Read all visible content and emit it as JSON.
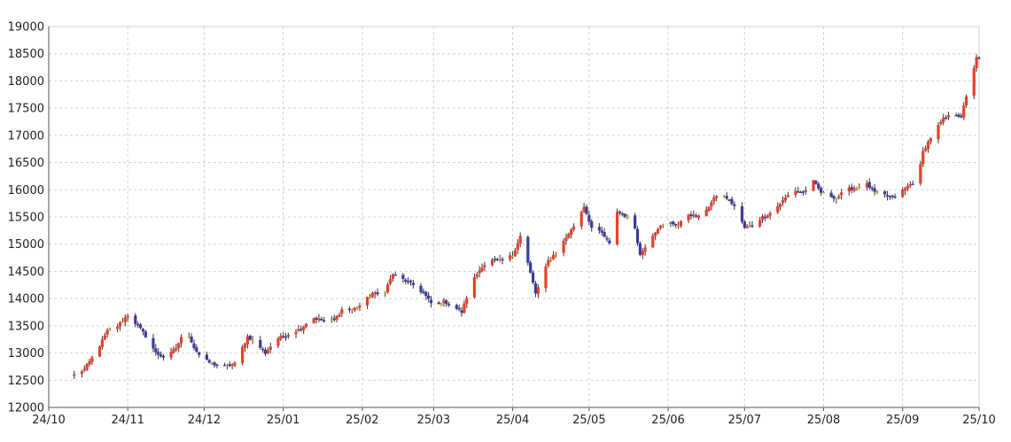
{
  "chart_data": {
    "type": "candlestick",
    "grid": true,
    "legend": "none",
    "ylim": [
      12000,
      19000
    ],
    "xlim": [
      "2024-10-01",
      "2025-10-01"
    ],
    "y_ticks": [
      12000,
      12500,
      13000,
      13500,
      14000,
      14500,
      15000,
      15500,
      16000,
      16500,
      17000,
      17500,
      18000,
      18500,
      19000
    ],
    "x_ticks": [
      {
        "label": "24/10",
        "date": "2024-10-01"
      },
      {
        "label": "24/11",
        "date": "2024-11-01"
      },
      {
        "label": "24/12",
        "date": "2024-12-01"
      },
      {
        "label": "25/01",
        "date": "2025-01-01"
      },
      {
        "label": "25/02",
        "date": "2025-02-01"
      },
      {
        "label": "25/03",
        "date": "2025-03-01"
      },
      {
        "label": "25/04",
        "date": "2025-04-01"
      },
      {
        "label": "25/05",
        "date": "2025-05-01"
      },
      {
        "label": "25/06",
        "date": "2025-06-01"
      },
      {
        "label": "25/07",
        "date": "2025-07-01"
      },
      {
        "label": "25/08",
        "date": "2025-08-01"
      },
      {
        "label": "25/09",
        "date": "2025-09-01"
      },
      {
        "label": "25/10",
        "date": "2025-10-01"
      }
    ],
    "colors": {
      "up": "#e8402a",
      "down": "#3a3aa0",
      "up_small": "#f5a623",
      "wick": "#333333"
    },
    "close_path": [
      [
        "2024-10-11",
        12600
      ],
      [
        "2024-10-15",
        12700
      ],
      [
        "2024-10-20",
        13050
      ],
      [
        "2024-10-24",
        13400
      ],
      [
        "2024-10-28",
        13500
      ],
      [
        "2024-11-01",
        13700
      ],
      [
        "2024-11-05",
        13500
      ],
      [
        "2024-11-09",
        13250
      ],
      [
        "2024-11-12",
        13000
      ],
      [
        "2024-11-16",
        12900
      ],
      [
        "2024-11-20",
        13100
      ],
      [
        "2024-11-24",
        13450
      ],
      [
        "2024-11-27",
        13100
      ],
      [
        "2024-11-30",
        12900
      ],
      [
        "2024-12-04",
        12800
      ],
      [
        "2024-12-09",
        12750
      ],
      [
        "2024-12-13",
        12800
      ],
      [
        "2024-12-18",
        13300
      ],
      [
        "2024-12-21",
        13200
      ],
      [
        "2024-12-25",
        13000
      ],
      [
        "2024-12-29",
        13250
      ],
      [
        "2025-01-03",
        13350
      ],
      [
        "2025-01-08",
        13450
      ],
      [
        "2025-01-12",
        13650
      ],
      [
        "2025-01-17",
        13600
      ],
      [
        "2025-01-21",
        13600
      ],
      [
        "2025-01-24",
        13800
      ],
      [
        "2025-01-28",
        13800
      ],
      [
        "2025-02-01",
        13900
      ],
      [
        "2025-02-05",
        14100
      ],
      [
        "2025-02-09",
        14050
      ],
      [
        "2025-02-13",
        14450
      ],
      [
        "2025-02-17",
        14350
      ],
      [
        "2025-02-21",
        14250
      ],
      [
        "2025-02-25",
        14100
      ],
      [
        "2025-03-01",
        13850
      ],
      [
        "2025-03-05",
        13950
      ],
      [
        "2025-03-09",
        13850
      ],
      [
        "2025-03-12",
        13750
      ],
      [
        "2025-03-16",
        14300
      ],
      [
        "2025-03-20",
        14600
      ],
      [
        "2025-03-24",
        14700
      ],
      [
        "2025-03-28",
        14700
      ],
      [
        "2025-04-01",
        14800
      ],
      [
        "2025-04-04",
        15150
      ],
      [
        "2025-04-07",
        14650
      ],
      [
        "2025-04-10",
        14100
      ],
      [
        "2025-04-12",
        14300
      ],
      [
        "2025-04-15",
        14700
      ],
      [
        "2025-04-19",
        14900
      ],
      [
        "2025-04-23",
        15200
      ],
      [
        "2025-04-26",
        15400
      ],
      [
        "2025-04-29",
        15700
      ],
      [
        "2025-05-02",
        15300
      ],
      [
        "2025-05-06",
        15200
      ],
      [
        "2025-05-09",
        15000
      ],
      [
        "2025-05-12",
        15600
      ],
      [
        "2025-05-16",
        15500
      ],
      [
        "2025-05-19",
        15300
      ],
      [
        "2025-05-21",
        14800
      ],
      [
        "2025-05-24",
        15050
      ],
      [
        "2025-05-28",
        15300
      ],
      [
        "2025-06-01",
        15400
      ],
      [
        "2025-06-05",
        15350
      ],
      [
        "2025-06-09",
        15550
      ],
      [
        "2025-06-13",
        15500
      ],
      [
        "2025-06-17",
        15700
      ],
      [
        "2025-06-20",
        15900
      ],
      [
        "2025-06-24",
        15850
      ],
      [
        "2025-06-27",
        15700
      ],
      [
        "2025-07-01",
        15300
      ],
      [
        "2025-07-04",
        15350
      ],
      [
        "2025-07-08",
        15500
      ],
      [
        "2025-07-12",
        15600
      ],
      [
        "2025-07-16",
        15800
      ],
      [
        "2025-07-20",
        16000
      ],
      [
        "2025-07-24",
        15950
      ],
      [
        "2025-07-28",
        16150
      ],
      [
        "2025-07-31",
        15950
      ],
      [
        "2025-08-03",
        15900
      ],
      [
        "2025-08-06",
        15850
      ],
      [
        "2025-08-10",
        16000
      ],
      [
        "2025-08-14",
        16050
      ],
      [
        "2025-08-18",
        16100
      ],
      [
        "2025-08-21",
        15950
      ],
      [
        "2025-08-25",
        15900
      ],
      [
        "2025-08-28",
        15850
      ],
      [
        "2025-08-31",
        15950
      ],
      [
        "2025-09-04",
        16100
      ],
      [
        "2025-09-07",
        16200
      ],
      [
        "2025-09-09",
        16700
      ],
      [
        "2025-09-13",
        17050
      ],
      [
        "2025-09-17",
        17300
      ],
      [
        "2025-09-21",
        17400
      ],
      [
        "2025-09-24",
        17350
      ],
      [
        "2025-09-26",
        17700
      ],
      [
        "2025-09-28",
        18050
      ],
      [
        "2025-09-30",
        18450
      ],
      [
        "2025-10-01",
        18400
      ]
    ]
  }
}
